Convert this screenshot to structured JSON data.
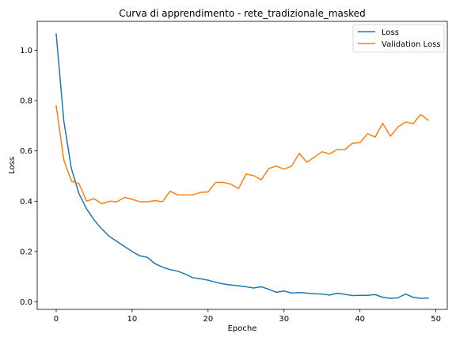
{
  "chart_data": {
    "type": "line",
    "title": "Curva di apprendimento - rete_tradizionale_masked",
    "xlabel": "Epoche",
    "ylabel": "Loss",
    "xlim": [
      -2.5,
      51.5
    ],
    "ylim": [
      -0.03,
      1.115
    ],
    "xticks": [
      0,
      10,
      20,
      30,
      40,
      50
    ],
    "yticks": [
      0.0,
      0.2,
      0.4,
      0.6,
      0.8,
      1.0
    ],
    "ytick_labels": [
      "0.0",
      "0.2",
      "0.4",
      "0.6",
      "0.8",
      "1.0"
    ],
    "legend_position": "top-right",
    "grid": false,
    "x": [
      0,
      1,
      2,
      3,
      4,
      5,
      6,
      7,
      8,
      9,
      10,
      11,
      12,
      13,
      14,
      15,
      16,
      17,
      18,
      19,
      20,
      21,
      22,
      23,
      24,
      25,
      26,
      27,
      28,
      29,
      30,
      31,
      32,
      33,
      34,
      35,
      36,
      37,
      38,
      39,
      40,
      41,
      42,
      43,
      44,
      45,
      46,
      47,
      48,
      49
    ],
    "series": [
      {
        "name": "Loss",
        "color": "#1f77b4",
        "values": [
          1.065,
          0.72,
          0.53,
          0.43,
          0.37,
          0.325,
          0.29,
          0.26,
          0.24,
          0.22,
          0.2,
          0.183,
          0.177,
          0.152,
          0.138,
          0.128,
          0.122,
          0.11,
          0.096,
          0.092,
          0.086,
          0.078,
          0.071,
          0.067,
          0.064,
          0.06,
          0.055,
          0.06,
          0.05,
          0.038,
          0.043,
          0.035,
          0.037,
          0.035,
          0.032,
          0.031,
          0.027,
          0.034,
          0.03,
          0.025,
          0.026,
          0.026,
          0.029,
          0.018,
          0.014,
          0.016,
          0.031,
          0.018,
          0.014,
          0.015
        ]
      },
      {
        "name": "Validation Loss",
        "color": "#ff7f0e",
        "values": [
          0.78,
          0.565,
          0.48,
          0.47,
          0.4,
          0.41,
          0.39,
          0.4,
          0.398,
          0.415,
          0.408,
          0.398,
          0.398,
          0.402,
          0.398,
          0.44,
          0.425,
          0.425,
          0.425,
          0.435,
          0.437,
          0.475,
          0.475,
          0.468,
          0.45,
          0.508,
          0.502,
          0.485,
          0.53,
          0.54,
          0.527,
          0.54,
          0.59,
          0.555,
          0.575,
          0.597,
          0.588,
          0.605,
          0.605,
          0.63,
          0.633,
          0.668,
          0.655,
          0.71,
          0.658,
          0.695,
          0.715,
          0.708,
          0.745,
          0.722
        ]
      }
    ]
  }
}
